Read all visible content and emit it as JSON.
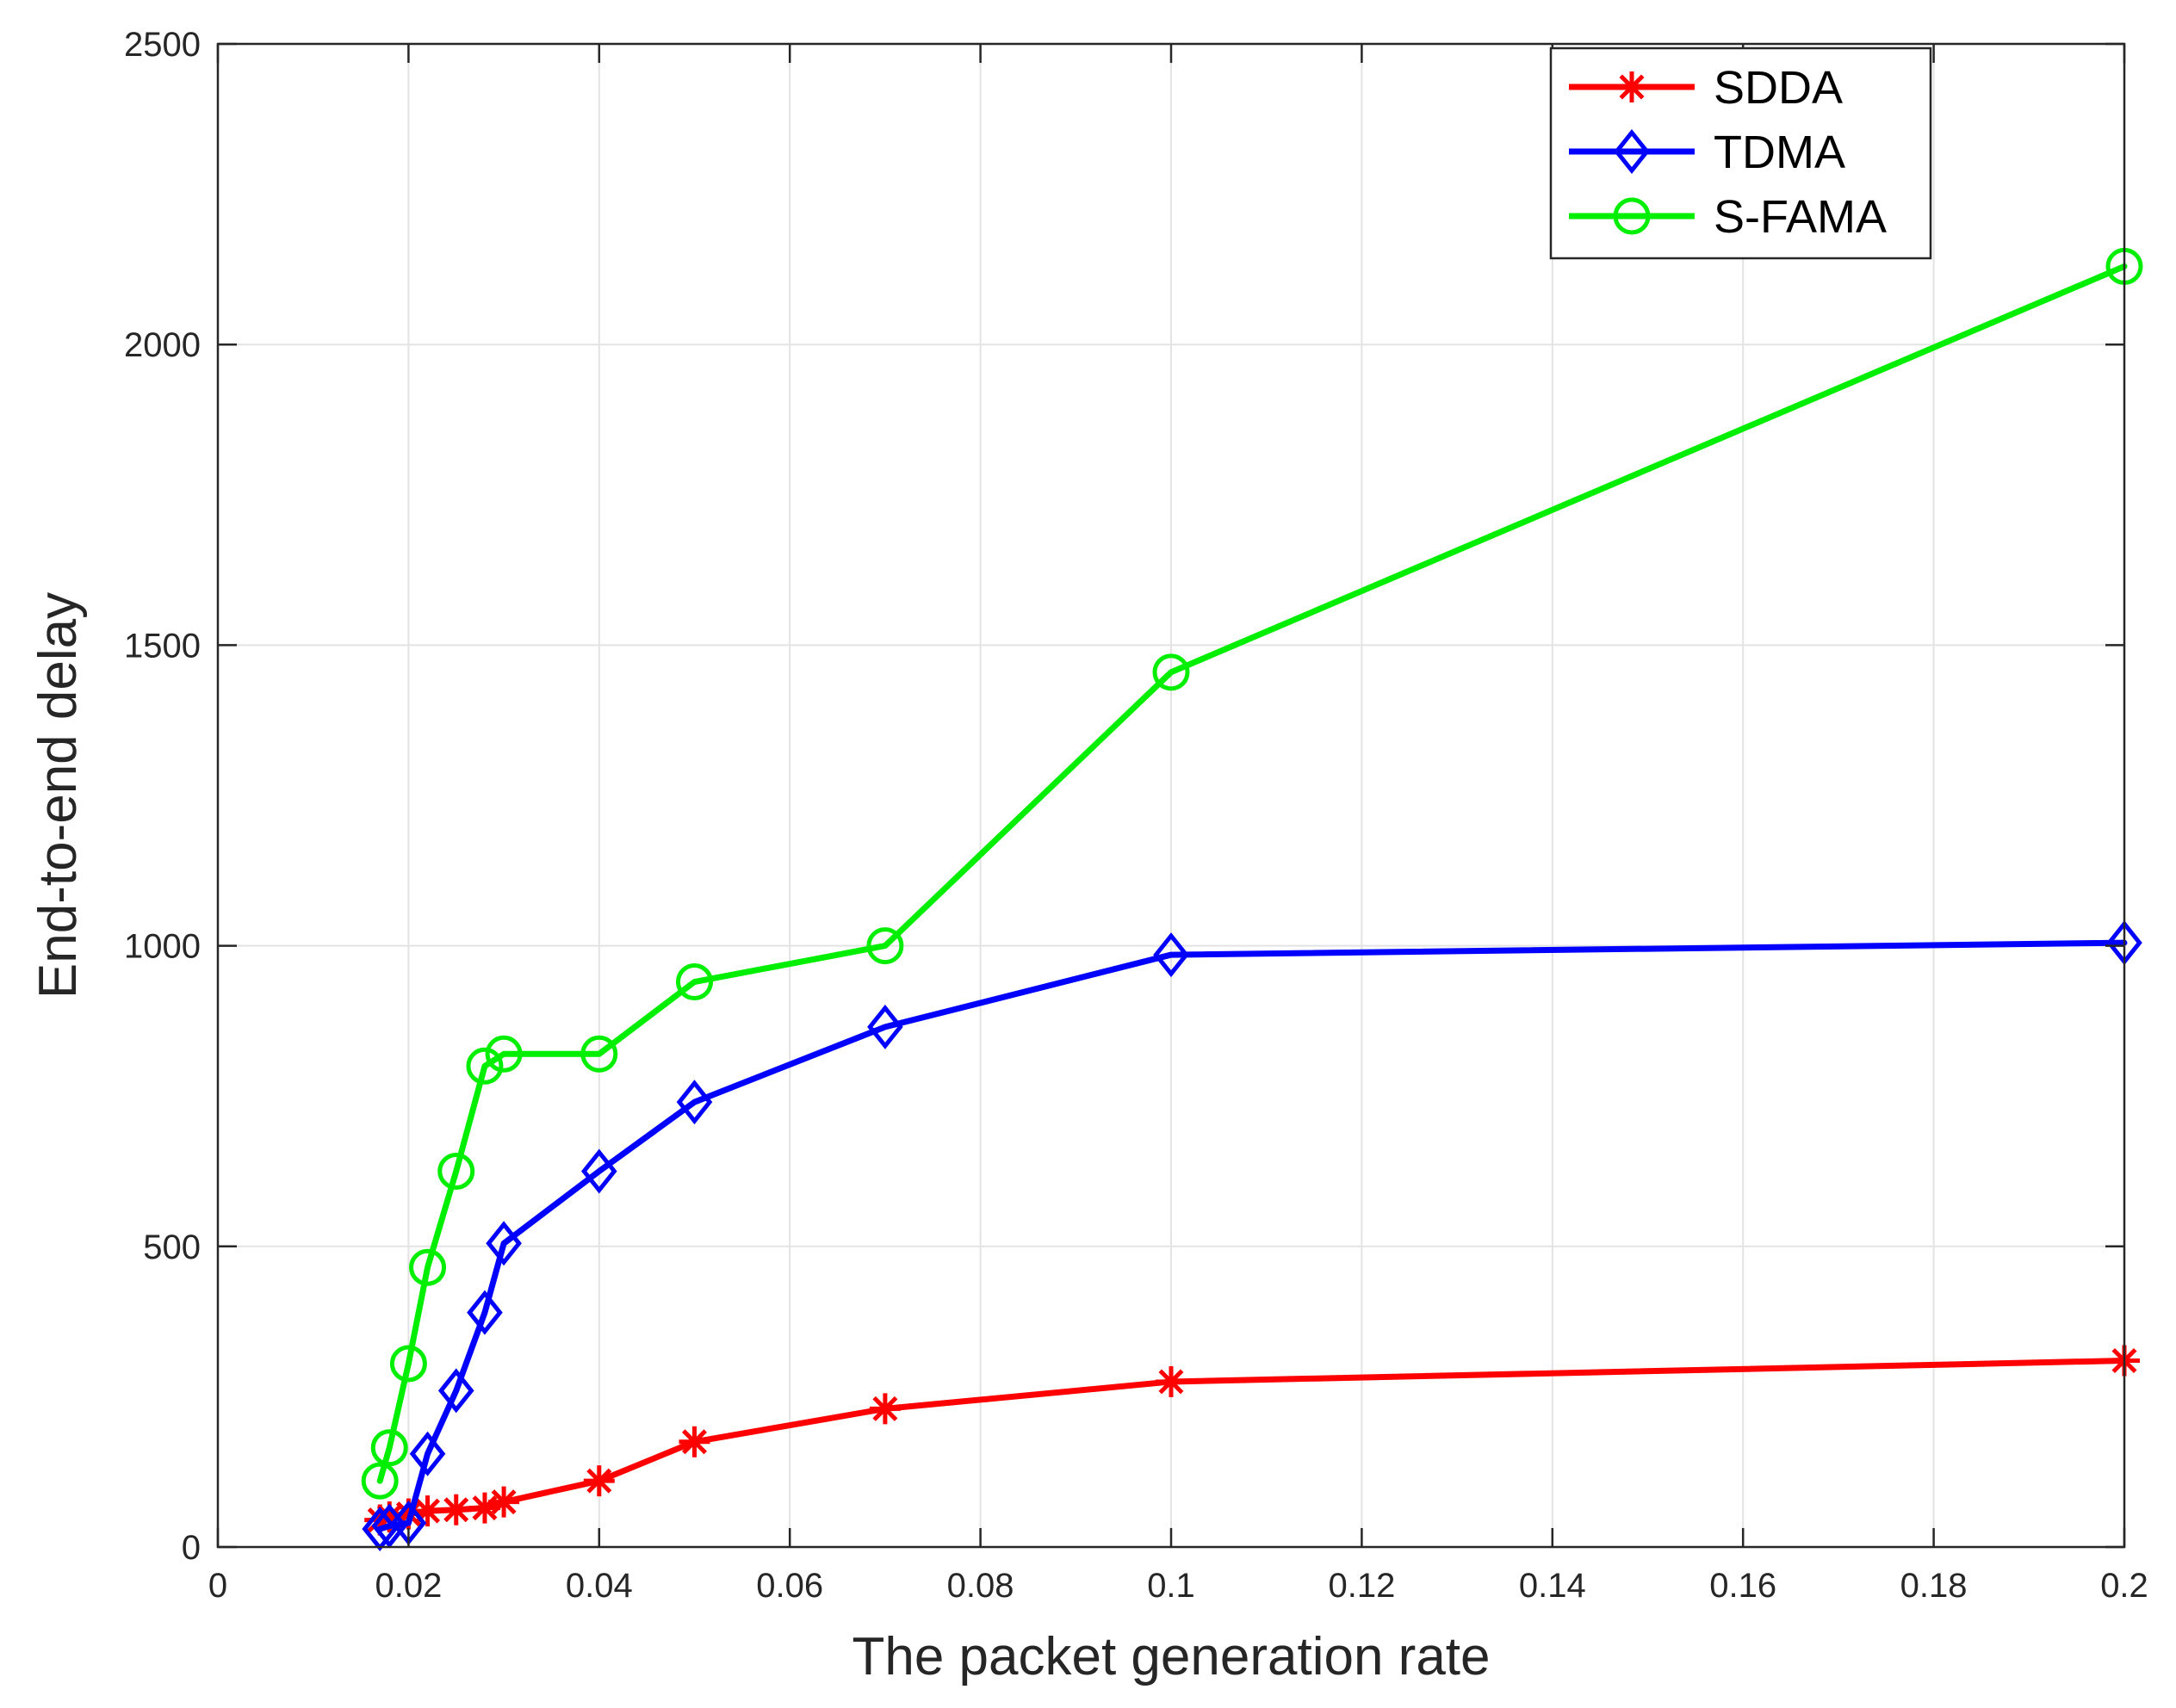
{
  "chart_data": {
    "type": "line",
    "xlabel": "The packet generation rate",
    "ylabel": "End-to-end delay",
    "xlim": [
      0,
      0.2
    ],
    "ylim": [
      0,
      2500
    ],
    "xticks": [
      "0",
      "0.02",
      "0.04",
      "0.06",
      "0.08",
      "0.1",
      "0.12",
      "0.14",
      "0.16",
      "0.18",
      "0.2"
    ],
    "yticks": [
      "0",
      "500",
      "1000",
      "1500",
      "2000",
      "2500"
    ],
    "grid": true,
    "legend_position": "top-right",
    "series": [
      {
        "name": "SDDA",
        "color": "#ff0000",
        "marker": "asterisk",
        "x": [
          0.017,
          0.018,
          0.02,
          0.022,
          0.025,
          0.028,
          0.03,
          0.04,
          0.05,
          0.07,
          0.1,
          0.2
        ],
        "y": [
          45,
          50,
          55,
          60,
          62,
          65,
          75,
          110,
          175,
          230,
          275,
          310
        ]
      },
      {
        "name": "TDMA",
        "color": "#0000ff",
        "marker": "diamond",
        "x": [
          0.017,
          0.018,
          0.02,
          0.022,
          0.025,
          0.028,
          0.03,
          0.04,
          0.05,
          0.07,
          0.1,
          0.2
        ],
        "y": [
          30,
          35,
          40,
          155,
          260,
          390,
          505,
          625,
          740,
          865,
          985,
          1005
        ]
      },
      {
        "name": "S-FAMA",
        "color": "#00ee00",
        "marker": "circle",
        "x": [
          0.017,
          0.018,
          0.02,
          0.022,
          0.025,
          0.028,
          0.03,
          0.04,
          0.05,
          0.07,
          0.1,
          0.2
        ],
        "y": [
          110,
          165,
          305,
          465,
          625,
          800,
          820,
          820,
          940,
          1000,
          1455,
          2130
        ]
      }
    ]
  }
}
